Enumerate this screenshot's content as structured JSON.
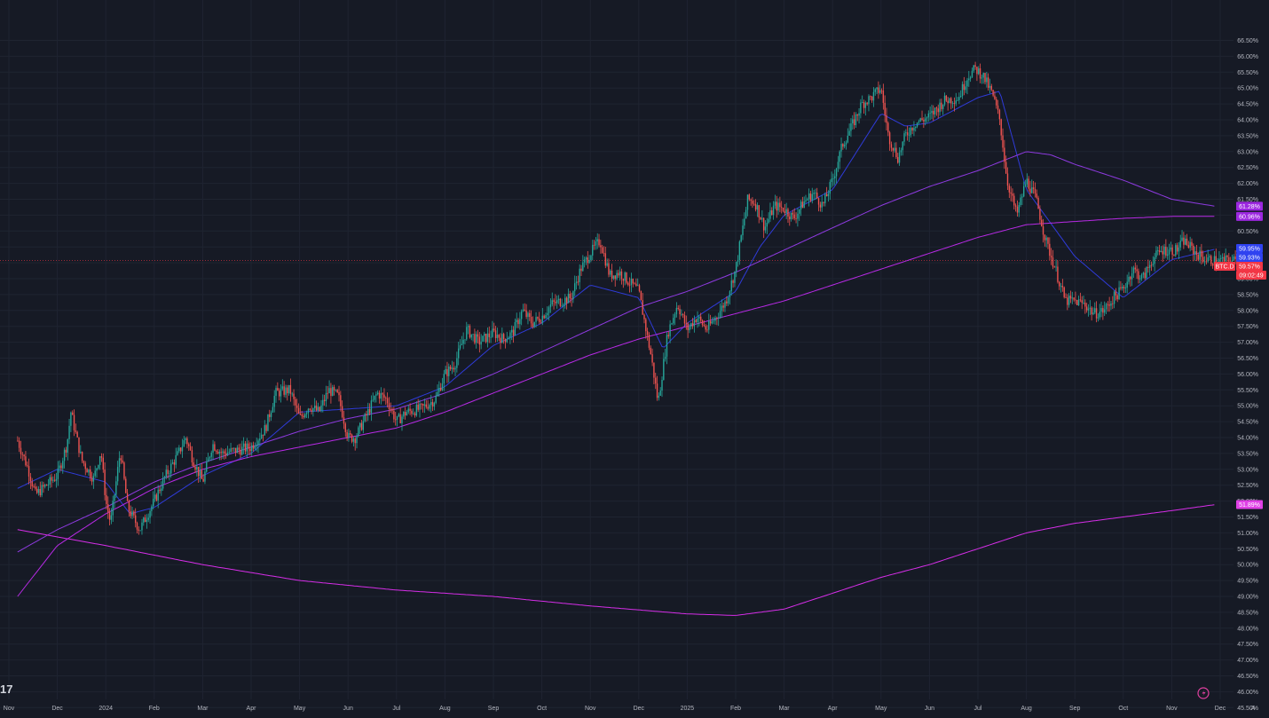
{
  "chart_data": {
    "type": "candlestick",
    "symbol": "BTC.D",
    "y_unit": "%",
    "ylim": [
      44.8,
      66.8
    ],
    "y_ticks": [
      "66.50%",
      "66.00%",
      "65.50%",
      "65.00%",
      "64.50%",
      "64.00%",
      "63.50%",
      "63.00%",
      "62.50%",
      "62.00%",
      "61.50%",
      "61.00%",
      "60.50%",
      "60.00%",
      "59.50%",
      "59.00%",
      "58.50%",
      "58.00%",
      "57.50%",
      "57.00%",
      "56.50%",
      "56.00%",
      "55.50%",
      "55.00%",
      "54.50%",
      "54.00%",
      "53.50%",
      "53.00%",
      "52.50%",
      "52.00%",
      "51.50%",
      "51.00%",
      "50.50%",
      "50.00%",
      "49.50%",
      "49.00%",
      "48.50%",
      "48.00%",
      "47.50%",
      "47.00%",
      "46.50%",
      "46.00%",
      "45.50%",
      "45.00%"
    ],
    "x_ticks": [
      "Nov",
      "Dec",
      "2024",
      "Feb",
      "Mar",
      "Apr",
      "May",
      "Jun",
      "Jul",
      "Aug",
      "Sep",
      "Oct",
      "Nov",
      "Dec",
      "2025",
      "Feb",
      "Mar",
      "Apr",
      "May",
      "Jun",
      "Jul",
      "Aug",
      "Sep",
      "Oct",
      "Nov",
      "Dec"
    ],
    "x_tick_positions": [
      0,
      1,
      2,
      3,
      4,
      5,
      6,
      7,
      8,
      9,
      10,
      11,
      12,
      13,
      14,
      15,
      16,
      17,
      18,
      19,
      20,
      21,
      22,
      23,
      24,
      25
    ],
    "x_range": [
      0.18,
      25.45
    ],
    "price_key_points": [
      [
        0.18,
        53.9
      ],
      [
        0.4,
        53.0
      ],
      [
        0.55,
        52.2
      ],
      [
        1.0,
        52.8
      ],
      [
        1.2,
        53.8
      ],
      [
        1.28,
        54.8
      ],
      [
        1.5,
        53.3
      ],
      [
        1.75,
        52.7
      ],
      [
        1.9,
        53.6
      ],
      [
        2.0,
        52.0
      ],
      [
        2.1,
        51.3
      ],
      [
        2.3,
        53.6
      ],
      [
        2.45,
        51.8
      ],
      [
        2.7,
        51.1
      ],
      [
        3.0,
        52.0
      ],
      [
        3.2,
        52.7
      ],
      [
        3.5,
        53.5
      ],
      [
        3.65,
        54.0
      ],
      [
        3.8,
        53.3
      ],
      [
        4.0,
        52.6
      ],
      [
        4.2,
        53.8
      ],
      [
        4.4,
        53.5
      ],
      [
        4.7,
        53.6
      ],
      [
        5.0,
        53.7
      ],
      [
        5.3,
        54.3
      ],
      [
        5.5,
        55.4
      ],
      [
        5.8,
        55.5
      ],
      [
        6.0,
        54.6
      ],
      [
        6.2,
        55.0
      ],
      [
        6.4,
        54.8
      ],
      [
        6.6,
        55.5
      ],
      [
        6.8,
        55.3
      ],
      [
        7.0,
        54.0
      ],
      [
        7.15,
        54.0
      ],
      [
        7.35,
        54.6
      ],
      [
        7.6,
        55.4
      ],
      [
        7.8,
        55.2
      ],
      [
        8.0,
        54.5
      ],
      [
        8.2,
        54.8
      ],
      [
        8.5,
        54.9
      ],
      [
        8.8,
        55.2
      ],
      [
        9.0,
        56.0
      ],
      [
        9.2,
        56.3
      ],
      [
        9.45,
        57.4
      ],
      [
        9.7,
        57.0
      ],
      [
        10.0,
        57.3
      ],
      [
        10.2,
        57.1
      ],
      [
        10.4,
        57.3
      ],
      [
        10.6,
        58.0
      ],
      [
        10.8,
        57.6
      ],
      [
        11.0,
        57.8
      ],
      [
        11.2,
        58.2
      ],
      [
        11.6,
        58.4
      ],
      [
        11.8,
        59.3
      ],
      [
        12.0,
        59.8
      ],
      [
        12.2,
        60.2
      ],
      [
        12.4,
        59.1
      ],
      [
        12.6,
        59.2
      ],
      [
        12.8,
        58.9
      ],
      [
        13.0,
        58.6
      ],
      [
        13.25,
        56.6
      ],
      [
        13.4,
        55.1
      ],
      [
        13.6,
        57.3
      ],
      [
        13.8,
        58.2
      ],
      [
        14.0,
        57.4
      ],
      [
        14.2,
        57.8
      ],
      [
        14.4,
        57.4
      ],
      [
        14.6,
        57.8
      ],
      [
        14.8,
        58.3
      ],
      [
        15.0,
        59.3
      ],
      [
        15.1,
        60.2
      ],
      [
        15.25,
        61.5
      ],
      [
        15.4,
        61.4
      ],
      [
        15.6,
        60.6
      ],
      [
        15.8,
        61.3
      ],
      [
        16.0,
        61.2
      ],
      [
        16.2,
        60.9
      ],
      [
        16.4,
        61.4
      ],
      [
        16.6,
        61.7
      ],
      [
        16.8,
        61.3
      ],
      [
        17.0,
        62.1
      ],
      [
        17.2,
        63.2
      ],
      [
        17.4,
        63.8
      ],
      [
        17.6,
        64.5
      ],
      [
        17.8,
        64.7
      ],
      [
        18.0,
        65.0
      ],
      [
        18.15,
        63.5
      ],
      [
        18.35,
        62.8
      ],
      [
        18.5,
        63.5
      ],
      [
        18.7,
        63.9
      ],
      [
        19.0,
        64.1
      ],
      [
        19.3,
        64.6
      ],
      [
        19.6,
        64.7
      ],
      [
        19.8,
        65.4
      ],
      [
        19.95,
        65.6
      ],
      [
        20.1,
        65.4
      ],
      [
        20.3,
        64.8
      ],
      [
        20.45,
        64.0
      ],
      [
        20.6,
        62.1
      ],
      [
        20.8,
        61.0
      ],
      [
        21.0,
        62.1
      ],
      [
        21.2,
        61.5
      ],
      [
        21.4,
        60.2
      ],
      [
        21.6,
        59.3
      ],
      [
        21.8,
        58.3
      ],
      [
        22.0,
        58.3
      ],
      [
        22.2,
        58.2
      ],
      [
        22.4,
        57.9
      ],
      [
        22.6,
        58.0
      ],
      [
        22.8,
        58.4
      ],
      [
        23.0,
        58.7
      ],
      [
        23.2,
        59.3
      ],
      [
        23.4,
        59.0
      ],
      [
        23.6,
        59.6
      ],
      [
        23.8,
        59.9
      ],
      [
        24.1,
        59.9
      ],
      [
        24.25,
        60.2
      ],
      [
        24.5,
        59.8
      ],
      [
        24.7,
        59.6
      ],
      [
        24.9,
        59.57
      ]
    ],
    "moving_average_key_points": [
      [
        [
          0.18,
          52.4
        ],
        [
          1.0,
          53.0
        ],
        [
          2.0,
          52.6
        ],
        [
          2.5,
          51.6
        ],
        [
          3.0,
          51.8
        ],
        [
          4.0,
          52.8
        ],
        [
          5.0,
          53.5
        ],
        [
          6.0,
          54.8
        ],
        [
          7.0,
          54.9
        ],
        [
          8.0,
          55.0
        ],
        [
          9.0,
          55.6
        ],
        [
          10.0,
          56.9
        ],
        [
          11.0,
          57.6
        ],
        [
          12.0,
          58.8
        ],
        [
          13.0,
          58.4
        ],
        [
          13.5,
          56.8
        ],
        [
          14.0,
          57.6
        ],
        [
          15.0,
          58.6
        ],
        [
          15.5,
          60.0
        ],
        [
          16.0,
          61.0
        ],
        [
          17.0,
          61.8
        ],
        [
          18.0,
          64.2
        ],
        [
          18.5,
          63.8
        ],
        [
          19.0,
          63.9
        ],
        [
          20.0,
          64.7
        ],
        [
          20.45,
          64.9
        ],
        [
          21.0,
          61.8
        ],
        [
          22.0,
          59.7
        ],
        [
          23.0,
          58.4
        ],
        [
          24.0,
          59.6
        ],
        [
          24.9,
          59.93
        ]
      ],
      [
        [
          0.18,
          50.4
        ],
        [
          1.0,
          51.1
        ],
        [
          2.0,
          51.8
        ],
        [
          3.0,
          52.6
        ],
        [
          4.0,
          53.2
        ],
        [
          5.0,
          53.7
        ],
        [
          6.0,
          54.2
        ],
        [
          7.0,
          54.6
        ],
        [
          8.0,
          54.9
        ],
        [
          9.0,
          55.4
        ],
        [
          10.0,
          56.0
        ],
        [
          11.0,
          56.7
        ],
        [
          12.0,
          57.4
        ],
        [
          13.0,
          58.1
        ],
        [
          14.0,
          58.6
        ],
        [
          15.0,
          59.2
        ],
        [
          16.0,
          59.9
        ],
        [
          17.0,
          60.6
        ],
        [
          18.0,
          61.3
        ],
        [
          19.0,
          61.9
        ],
        [
          20.0,
          62.4
        ],
        [
          21.0,
          63.0
        ],
        [
          21.5,
          62.9
        ],
        [
          22.0,
          62.6
        ],
        [
          23.0,
          62.1
        ],
        [
          24.0,
          61.5
        ],
        [
          24.9,
          61.28
        ]
      ],
      [
        [
          0.18,
          49.0
        ],
        [
          1.0,
          50.6
        ],
        [
          2.0,
          51.6
        ],
        [
          3.0,
          52.4
        ],
        [
          4.0,
          53.0
        ],
        [
          5.0,
          53.4
        ],
        [
          6.0,
          53.7
        ],
        [
          7.0,
          54.0
        ],
        [
          8.0,
          54.3
        ],
        [
          9.0,
          54.8
        ],
        [
          10.0,
          55.4
        ],
        [
          11.0,
          56.0
        ],
        [
          12.0,
          56.6
        ],
        [
          13.0,
          57.1
        ],
        [
          14.0,
          57.5
        ],
        [
          15.0,
          57.9
        ],
        [
          16.0,
          58.3
        ],
        [
          17.0,
          58.8
        ],
        [
          18.0,
          59.3
        ],
        [
          19.0,
          59.8
        ],
        [
          20.0,
          60.3
        ],
        [
          21.0,
          60.7
        ],
        [
          22.0,
          60.8
        ],
        [
          23.0,
          60.9
        ],
        [
          24.0,
          60.96
        ],
        [
          24.9,
          60.96
        ]
      ],
      [
        [
          0.18,
          51.1
        ],
        [
          2.0,
          50.6
        ],
        [
          4.0,
          50.0
        ],
        [
          6.0,
          49.5
        ],
        [
          8.0,
          49.2
        ],
        [
          10.0,
          49.0
        ],
        [
          12.0,
          48.7
        ],
        [
          14.0,
          48.45
        ],
        [
          15.0,
          48.4
        ],
        [
          16.0,
          48.6
        ],
        [
          17.0,
          49.1
        ],
        [
          18.0,
          49.6
        ],
        [
          19.0,
          50.0
        ],
        [
          20.0,
          50.5
        ],
        [
          21.0,
          51.0
        ],
        [
          22.0,
          51.3
        ],
        [
          23.0,
          51.5
        ],
        [
          24.0,
          51.7
        ],
        [
          24.9,
          51.89
        ]
      ]
    ],
    "ma_colors": [
      "#2f3bd9",
      "#8e3ae0",
      "#b82ae6",
      "#d62ee8"
    ],
    "up_color": "#26a69a",
    "down_color": "#ef5350",
    "current_price_line": 59.57,
    "labels": [
      {
        "text": "61.28%",
        "value": 61.28,
        "color": "#9c27e0"
      },
      {
        "text": "60.96%",
        "value": 60.96,
        "color": "#9c27e0"
      },
      {
        "text": "59.95%",
        "value": 59.95,
        "color": "#2f42f0"
      },
      {
        "text": "59.93%",
        "value": 59.93,
        "color": "#2f42f0"
      },
      {
        "text": "59.57%",
        "value": 59.57,
        "color": "#f23645",
        "symbol": "BTC.D",
        "countdown": "09:02:49"
      },
      {
        "text": "51.89%",
        "value": 51.89,
        "color": "#e040e6"
      }
    ],
    "grid": true,
    "legend": "none"
  },
  "ui": {
    "logo": "17",
    "lightning_icon": "lightning-bolt-icon",
    "auto_scale_label": "A"
  }
}
